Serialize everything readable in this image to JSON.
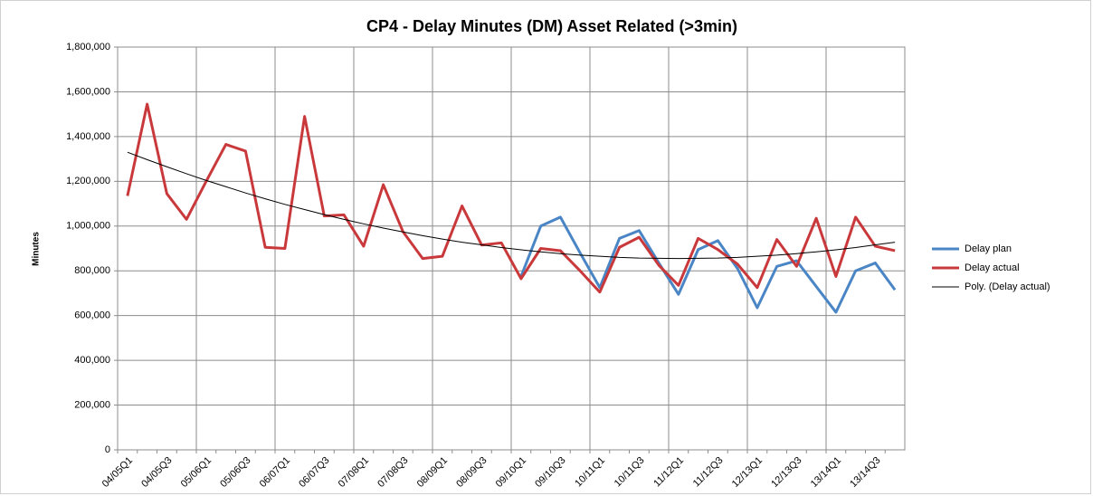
{
  "chart_data": {
    "type": "line",
    "title": "CP4 - Delay Minutes (DM) Asset Related (>3min)",
    "y_label": "Minutes",
    "categories": [
      "04/05Q1",
      null,
      "04/05Q3",
      null,
      "05/06Q1",
      null,
      "05/06Q3",
      null,
      "06/07Q1",
      null,
      "06/07Q3",
      null,
      "07/08Q1",
      null,
      "07/08Q3",
      null,
      "08/09Q1",
      null,
      "08/09Q3",
      null,
      "09/10Q1",
      null,
      "09/10Q3",
      null,
      "10/11Q1",
      null,
      "10/11Q3",
      null,
      "11/12Q1",
      null,
      "11/12Q3",
      null,
      "12/13Q1",
      null,
      "12/13Q3",
      null,
      "13/14Q1",
      null,
      "13/14Q3",
      null
    ],
    "series": [
      {
        "name": "Delay plan",
        "color": "#4a85c5",
        "width": 3,
        "values": [
          null,
          null,
          null,
          null,
          null,
          null,
          null,
          null,
          null,
          null,
          null,
          null,
          null,
          null,
          null,
          null,
          null,
          null,
          null,
          null,
          775000,
          1000000,
          1040000,
          880000,
          725000,
          945000,
          980000,
          835000,
          695000,
          895000,
          935000,
          810000,
          635000,
          820000,
          845000,
          730000,
          615000,
          800000,
          835000,
          715000
        ]
      },
      {
        "name": "Delay actual",
        "color": "#c9393b",
        "width": 3,
        "values": [
          1135000,
          1545000,
          1145000,
          1030000,
          1200000,
          1365000,
          1335000,
          905000,
          900000,
          1490000,
          1045000,
          1050000,
          910000,
          1185000,
          975000,
          855000,
          865000,
          1090000,
          915000,
          925000,
          765000,
          900000,
          890000,
          800000,
          705000,
          905000,
          950000,
          825000,
          735000,
          945000,
          895000,
          830000,
          725000,
          940000,
          820000,
          1035000,
          775000,
          1040000,
          910000,
          890000
        ]
      },
      {
        "name": "Poly. (Delay actual)",
        "color": "#000000",
        "width": 1,
        "values": [
          1330000,
          1297000,
          1265000,
          1234000,
          1204000,
          1176000,
          1148000,
          1122000,
          1097000,
          1074000,
          1051000,
          1030000,
          1010000,
          991000,
          974000,
          957000,
          942000,
          928000,
          916000,
          904000,
          894000,
          885000,
          877000,
          870000,
          865000,
          860000,
          857000,
          856000,
          855000,
          856000,
          857000,
          860000,
          865000,
          870000,
          877000,
          885000,
          894000,
          904000,
          916000,
          928000
        ]
      }
    ],
    "ylim": [
      0,
      1800000
    ],
    "yticks": [
      0,
      {
        "value": 200000,
        "label": "200,000"
      },
      {
        "value": 400000,
        "label": "400,000"
      },
      {
        "value": 600000,
        "label": "600,000"
      },
      {
        "value": 800000,
        "label": "800,000"
      },
      {
        "value": 1000000,
        "label": "1,000,000"
      },
      {
        "value": 1200000,
        "label": "1,200,000"
      },
      {
        "value": 1400000,
        "label": "1,400,000"
      },
      {
        "value": 1600000,
        "label": "1,600,000"
      },
      {
        "value": 1800000,
        "label": "1,800,000"
      }
    ],
    "grid": true,
    "legend": "right"
  }
}
